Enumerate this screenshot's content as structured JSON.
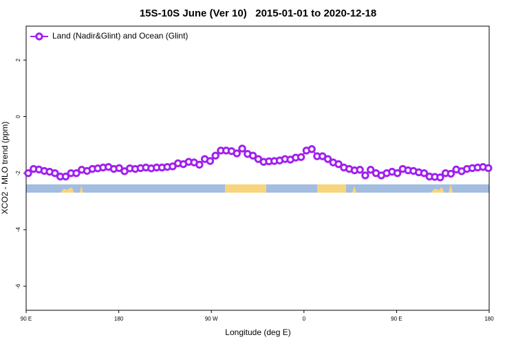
{
  "chart_data": {
    "type": "line",
    "title": "15S-10S June (Ver 10)   2015-01-01 to 2020-12-18",
    "x_label": "Longitude (deg E)",
    "y_label": "XCO2 - MLO trend (ppm)",
    "xlim": [
      90,
      540
    ],
    "xticks": [
      {
        "value": 90,
        "label": "90 E"
      },
      180,
      {
        "value": 270,
        "label": "90 W"
      },
      {
        "value": 360,
        "label": "0"
      },
      {
        "value": 450,
        "label": "90 E"
      },
      {
        "value": 540,
        "label": "180"
      }
    ],
    "ylim": [
      -6.85,
      3.2
    ],
    "yticks": [
      -6,
      -4,
      -2,
      0,
      2
    ],
    "legend": "top-left",
    "x": [
      92,
      97.2,
      102.4,
      107.6,
      112.8,
      118,
      123.2,
      128.4,
      133.6,
      138.8,
      144,
      149.2,
      154.4,
      159.6,
      164.8,
      170,
      175.2,
      180.4,
      185.6,
      190.8,
      196,
      201.2,
      206.4,
      211.6,
      216.8,
      222,
      227.2,
      232.4,
      237.6,
      242.8,
      248,
      253.2,
      258.4,
      263.6,
      268.8,
      274,
      279.2,
      284.4,
      289.6,
      294.8,
      300,
      305.2,
      310.4,
      315.6,
      320.8,
      326,
      331.2,
      336.4,
      341.6,
      346.8,
      352,
      357.2,
      362.4,
      367.6,
      372.8,
      378,
      383.2,
      388.4,
      393.6,
      398.8,
      404,
      409.2,
      414.4,
      419.6,
      424.8,
      430,
      435.2,
      440.4,
      445.6,
      450.8,
      456,
      461.2,
      466.4,
      471.6,
      476.8,
      482,
      487.2,
      492.4,
      497.6,
      502.8,
      508,
      513.2,
      518.4,
      523.6,
      528.8,
      534,
      539.2
    ],
    "series": [
      {
        "name": "Land (Nadir&Glint) and Ocean (Glint)",
        "color": "#a020f0",
        "values": [
          -2.0,
          -1.85,
          -1.87,
          -1.92,
          -1.95,
          -2.0,
          -2.12,
          -2.12,
          -2.0,
          -2.0,
          -1.88,
          -1.92,
          -1.85,
          -1.83,
          -1.8,
          -1.78,
          -1.85,
          -1.82,
          -1.93,
          -1.83,
          -1.85,
          -1.82,
          -1.8,
          -1.83,
          -1.8,
          -1.8,
          -1.78,
          -1.76,
          -1.65,
          -1.68,
          -1.6,
          -1.62,
          -1.7,
          -1.5,
          -1.57,
          -1.38,
          -1.2,
          -1.2,
          -1.22,
          -1.3,
          -1.13,
          -1.32,
          -1.38,
          -1.5,
          -1.6,
          -1.58,
          -1.57,
          -1.55,
          -1.5,
          -1.52,
          -1.45,
          -1.43,
          -1.2,
          -1.15,
          -1.4,
          -1.4,
          -1.5,
          -1.62,
          -1.68,
          -1.8,
          -1.85,
          -1.9,
          -1.88,
          -2.08,
          -1.88,
          -2.0,
          -2.08,
          -2.0,
          -1.95,
          -2.0,
          -1.85,
          -1.9,
          -1.92,
          -1.97,
          -2.0,
          -2.12,
          -2.13,
          -2.15,
          -2.0,
          -2.02,
          -1.87,
          -1.93,
          -1.85,
          -1.82,
          -1.8,
          -1.78,
          -1.82
        ]
      }
    ]
  }
}
